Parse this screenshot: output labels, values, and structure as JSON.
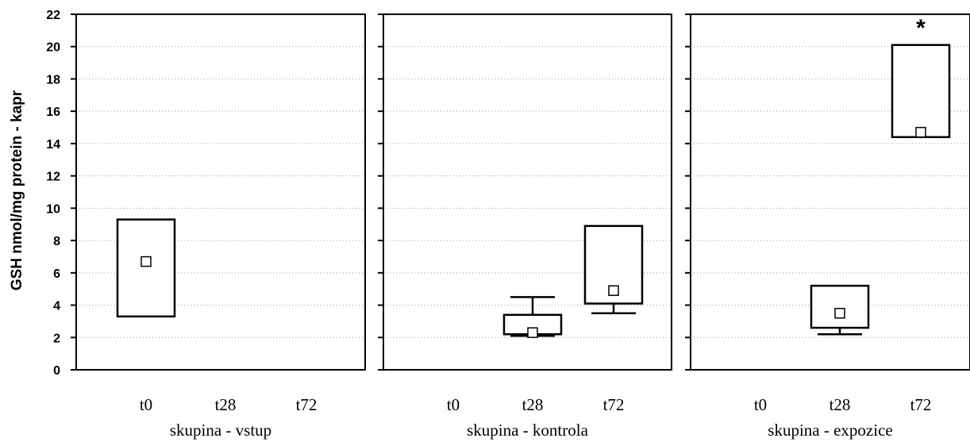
{
  "chart_data": {
    "type": "box",
    "ylabel": "GSH nmol/mg protein - kapr",
    "ylim": [
      0,
      22
    ],
    "yticks": [
      "0",
      "2",
      "4",
      "6",
      "8",
      "10",
      "12",
      "14",
      "16",
      "18",
      "20",
      "22"
    ],
    "grid": "horizontal dotted",
    "panels": [
      {
        "xlabel": "skupina - vstup",
        "categories": [
          "t0",
          "t28",
          "t72"
        ],
        "boxes": [
          {
            "category": "t0",
            "q1": 3.3,
            "q3": 9.3,
            "median": 6.7,
            "whisker_low": 3.3,
            "whisker_high": 9.3
          }
        ],
        "annotations": []
      },
      {
        "xlabel": "skupina - kontrola",
        "categories": [
          "t0",
          "t28",
          "t72"
        ],
        "boxes": [
          {
            "category": "t28",
            "q1": 2.2,
            "q3": 3.4,
            "median": 2.3,
            "whisker_low": 2.1,
            "whisker_high": 4.5
          },
          {
            "category": "t72",
            "q1": 4.1,
            "q3": 8.9,
            "median": 4.9,
            "whisker_low": 3.5,
            "whisker_high": 8.9
          }
        ],
        "annotations": []
      },
      {
        "xlabel": "skupina - expozice",
        "categories": [
          "t0",
          "t28",
          "t72"
        ],
        "boxes": [
          {
            "category": "t28",
            "q1": 2.6,
            "q3": 5.2,
            "median": 3.5,
            "whisker_low": 2.2,
            "whisker_high": 5.2
          },
          {
            "category": "t72",
            "q1": 14.4,
            "q3": 20.1,
            "median": 14.7,
            "whisker_low": 14.4,
            "whisker_high": 20.1
          }
        ],
        "annotations": [
          {
            "category": "t72",
            "text": "*"
          }
        ]
      }
    ]
  }
}
